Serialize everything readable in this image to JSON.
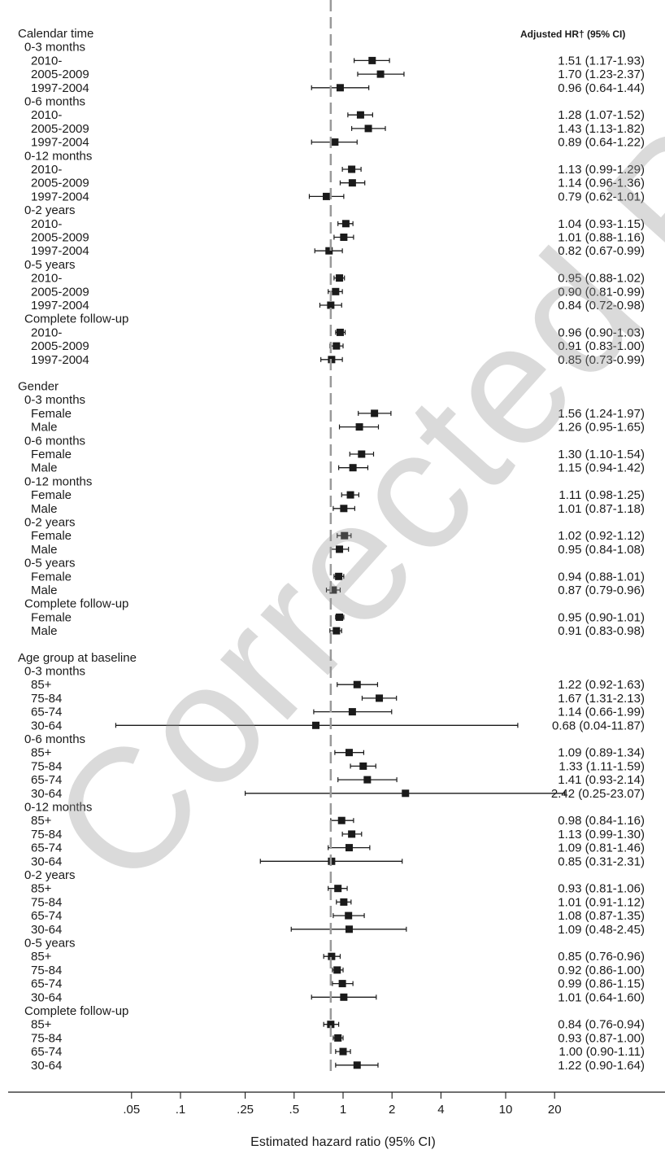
{
  "chart_data": {
    "type": "forest",
    "xscale": "log",
    "xlabel": "Estimated hazard ratio (95% CI)",
    "xticks": [
      {
        "v": 0.05,
        "label": ".05"
      },
      {
        "v": 0.1,
        "label": ".1"
      },
      {
        "v": 0.25,
        "label": ".25"
      },
      {
        "v": 0.5,
        "label": ".5"
      },
      {
        "v": 1,
        "label": "1"
      },
      {
        "v": 2,
        "label": "2"
      },
      {
        "v": 4,
        "label": "4"
      },
      {
        "v": 10,
        "label": "10"
      },
      {
        "v": 20,
        "label": "20"
      }
    ],
    "reference_line": 0.84,
    "right_header": "Adjusted HR† (95% CI)",
    "rows": [
      {
        "label": "Calendar time",
        "level": 0
      },
      {
        "label": "0-3 months",
        "level": 1
      },
      {
        "label": "2010-",
        "level": 2,
        "hr": 1.51,
        "lo": 1.17,
        "hi": 1.93,
        "text": "1.51 (1.17-1.93)"
      },
      {
        "label": "2005-2009",
        "level": 2,
        "hr": 1.7,
        "lo": 1.23,
        "hi": 2.37,
        "text": "1.70 (1.23-2.37)"
      },
      {
        "label": "1997-2004",
        "level": 2,
        "hr": 0.96,
        "lo": 0.64,
        "hi": 1.44,
        "text": "0.96 (0.64-1.44)"
      },
      {
        "label": "0-6 months",
        "level": 1
      },
      {
        "label": "2010-",
        "level": 2,
        "hr": 1.28,
        "lo": 1.07,
        "hi": 1.52,
        "text": "1.28 (1.07-1.52)"
      },
      {
        "label": "2005-2009",
        "level": 2,
        "hr": 1.43,
        "lo": 1.13,
        "hi": 1.82,
        "text": "1.43 (1.13-1.82)"
      },
      {
        "label": "1997-2004",
        "level": 2,
        "hr": 0.89,
        "lo": 0.64,
        "hi": 1.22,
        "text": "0.89 (0.64-1.22)"
      },
      {
        "label": "0-12 months",
        "level": 1
      },
      {
        "label": "2010-",
        "level": 2,
        "hr": 1.13,
        "lo": 0.99,
        "hi": 1.29,
        "text": "1.13 (0.99-1.29)"
      },
      {
        "label": "2005-2009",
        "level": 2,
        "hr": 1.14,
        "lo": 0.96,
        "hi": 1.36,
        "text": "1.14 (0.96-1.36)"
      },
      {
        "label": "1997-2004",
        "level": 2,
        "hr": 0.79,
        "lo": 0.62,
        "hi": 1.01,
        "text": "0.79 (0.62-1.01)"
      },
      {
        "label": "0-2 years",
        "level": 1
      },
      {
        "label": "2010-",
        "level": 2,
        "hr": 1.04,
        "lo": 0.93,
        "hi": 1.15,
        "text": "1.04 (0.93-1.15)"
      },
      {
        "label": "2005-2009",
        "level": 2,
        "hr": 1.01,
        "lo": 0.88,
        "hi": 1.16,
        "text": "1.01 (0.88-1.16)"
      },
      {
        "label": "1997-2004",
        "level": 2,
        "hr": 0.82,
        "lo": 0.67,
        "hi": 0.99,
        "text": "0.82 (0.67-0.99)"
      },
      {
        "label": "0-5 years",
        "level": 1
      },
      {
        "label": "2010-",
        "level": 2,
        "hr": 0.95,
        "lo": 0.88,
        "hi": 1.02,
        "text": "0.95 (0.88-1.02)"
      },
      {
        "label": "2005-2009",
        "level": 2,
        "hr": 0.9,
        "lo": 0.81,
        "hi": 0.99,
        "text": "0.90 (0.81-0.99)"
      },
      {
        "label": "1997-2004",
        "level": 2,
        "hr": 0.84,
        "lo": 0.72,
        "hi": 0.98,
        "text": "0.84 (0.72-0.98)"
      },
      {
        "label": "Complete follow-up",
        "level": 1
      },
      {
        "label": "2010-",
        "level": 2,
        "hr": 0.96,
        "lo": 0.9,
        "hi": 1.03,
        "text": "0.96 (0.90-1.03)"
      },
      {
        "label": "2005-2009",
        "level": 2,
        "hr": 0.91,
        "lo": 0.83,
        "hi": 1.0,
        "text": "0.91 (0.83-1.00)"
      },
      {
        "label": "1997-2004",
        "level": 2,
        "hr": 0.85,
        "lo": 0.73,
        "hi": 0.99,
        "text": "0.85 (0.73-0.99)"
      },
      {
        "label": "Gender",
        "level": 0
      },
      {
        "label": "0-3 months",
        "level": 1
      },
      {
        "label": "Female",
        "level": 2,
        "hr": 1.56,
        "lo": 1.24,
        "hi": 1.97,
        "text": "1.56 (1.24-1.97)"
      },
      {
        "label": "Male",
        "level": 2,
        "hr": 1.26,
        "lo": 0.95,
        "hi": 1.65,
        "text": "1.26 (0.95-1.65)"
      },
      {
        "label": "0-6 months",
        "level": 1
      },
      {
        "label": "Female",
        "level": 2,
        "hr": 1.3,
        "lo": 1.1,
        "hi": 1.54,
        "text": "1.30 (1.10-1.54)"
      },
      {
        "label": "Male",
        "level": 2,
        "hr": 1.15,
        "lo": 0.94,
        "hi": 1.42,
        "text": "1.15 (0.94-1.42)"
      },
      {
        "label": "0-12 months",
        "level": 1
      },
      {
        "label": "Female",
        "level": 2,
        "hr": 1.11,
        "lo": 0.98,
        "hi": 1.25,
        "text": "1.11 (0.98-1.25)"
      },
      {
        "label": "Male",
        "level": 2,
        "hr": 1.01,
        "lo": 0.87,
        "hi": 1.18,
        "text": "1.01 (0.87-1.18)"
      },
      {
        "label": "0-2 years",
        "level": 1
      },
      {
        "label": "Female",
        "level": 2,
        "hr": 1.02,
        "lo": 0.92,
        "hi": 1.12,
        "text": "1.02 (0.92-1.12)"
      },
      {
        "label": "Male",
        "level": 2,
        "hr": 0.95,
        "lo": 0.84,
        "hi": 1.08,
        "text": "0.95 (0.84-1.08)"
      },
      {
        "label": "0-5 years",
        "level": 1
      },
      {
        "label": "Female",
        "level": 2,
        "hr": 0.94,
        "lo": 0.88,
        "hi": 1.01,
        "text": "0.94 (0.88-1.01)"
      },
      {
        "label": "Male",
        "level": 2,
        "hr": 0.87,
        "lo": 0.79,
        "hi": 0.96,
        "text": "0.87 (0.79-0.96)"
      },
      {
        "label": "Complete follow-up",
        "level": 1
      },
      {
        "label": "Female",
        "level": 2,
        "hr": 0.95,
        "lo": 0.9,
        "hi": 1.01,
        "text": "0.95 (0.90-1.01)"
      },
      {
        "label": "Male",
        "level": 2,
        "hr": 0.91,
        "lo": 0.83,
        "hi": 0.98,
        "text": "0.91 (0.83-0.98)"
      },
      {
        "label": "Age group at baseline",
        "level": 0
      },
      {
        "label": "0-3 months",
        "level": 1
      },
      {
        "label": "85+",
        "level": 2,
        "hr": 1.22,
        "lo": 0.92,
        "hi": 1.63,
        "text": "1.22 (0.92-1.63)"
      },
      {
        "label": "75-84",
        "level": 2,
        "hr": 1.67,
        "lo": 1.31,
        "hi": 2.13,
        "text": "1.67 (1.31-2.13)"
      },
      {
        "label": "65-74",
        "level": 2,
        "hr": 1.14,
        "lo": 0.66,
        "hi": 1.99,
        "text": "1.14 (0.66-1.99)"
      },
      {
        "label": "30-64",
        "level": 2,
        "hr": 0.68,
        "lo": 0.04,
        "hi": 11.87,
        "text": "0.68 (0.04-11.87)"
      },
      {
        "label": "0-6 months",
        "level": 1
      },
      {
        "label": "85+",
        "level": 2,
        "hr": 1.09,
        "lo": 0.89,
        "hi": 1.34,
        "text": "1.09 (0.89-1.34)"
      },
      {
        "label": "75-84",
        "level": 2,
        "hr": 1.33,
        "lo": 1.11,
        "hi": 1.59,
        "text": "1.33 (1.11-1.59)"
      },
      {
        "label": "65-74",
        "level": 2,
        "hr": 1.41,
        "lo": 0.93,
        "hi": 2.14,
        "text": "1.41 (0.93-2.14)"
      },
      {
        "label": "30-64",
        "level": 2,
        "hr": 2.42,
        "lo": 0.25,
        "hi": 23.07,
        "text": "2.42 (0.25-23.07)"
      },
      {
        "label": "0-12 months",
        "level": 1
      },
      {
        "label": "85+",
        "level": 2,
        "hr": 0.98,
        "lo": 0.84,
        "hi": 1.16,
        "text": "0.98 (0.84-1.16)"
      },
      {
        "label": "75-84",
        "level": 2,
        "hr": 1.13,
        "lo": 0.99,
        "hi": 1.3,
        "text": "1.13 (0.99-1.30)"
      },
      {
        "label": "65-74",
        "level": 2,
        "hr": 1.09,
        "lo": 0.81,
        "hi": 1.46,
        "text": "1.09 (0.81-1.46)"
      },
      {
        "label": "30-64",
        "level": 2,
        "hr": 0.85,
        "lo": 0.31,
        "hi": 2.31,
        "text": "0.85 (0.31-2.31)"
      },
      {
        "label": "0-2 years",
        "level": 1
      },
      {
        "label": "85+",
        "level": 2,
        "hr": 0.93,
        "lo": 0.81,
        "hi": 1.06,
        "text": "0.93 (0.81-1.06)"
      },
      {
        "label": "75-84",
        "level": 2,
        "hr": 1.01,
        "lo": 0.91,
        "hi": 1.12,
        "text": "1.01 (0.91-1.12)"
      },
      {
        "label": "65-74",
        "level": 2,
        "hr": 1.08,
        "lo": 0.87,
        "hi": 1.35,
        "text": "1.08 (0.87-1.35)"
      },
      {
        "label": "30-64",
        "level": 2,
        "hr": 1.09,
        "lo": 0.48,
        "hi": 2.45,
        "text": "1.09 (0.48-2.45)"
      },
      {
        "label": "0-5 years",
        "level": 1
      },
      {
        "label": "85+",
        "level": 2,
        "hr": 0.85,
        "lo": 0.76,
        "hi": 0.96,
        "text": "0.85 (0.76-0.96)"
      },
      {
        "label": "75-84",
        "level": 2,
        "hr": 0.92,
        "lo": 0.86,
        "hi": 1.0,
        "text": "0.92 (0.86-1.00)"
      },
      {
        "label": "65-74",
        "level": 2,
        "hr": 0.99,
        "lo": 0.86,
        "hi": 1.15,
        "text": "0.99 (0.86-1.15)"
      },
      {
        "label": "30-64",
        "level": 2,
        "hr": 1.01,
        "lo": 0.64,
        "hi": 1.6,
        "text": "1.01 (0.64-1.60)"
      },
      {
        "label": "Complete follow-up",
        "level": 1
      },
      {
        "label": "85+",
        "level": 2,
        "hr": 0.84,
        "lo": 0.76,
        "hi": 0.94,
        "text": "0.84 (0.76-0.94)"
      },
      {
        "label": "75-84",
        "level": 2,
        "hr": 0.93,
        "lo": 0.87,
        "hi": 1.0,
        "text": "0.93 (0.87-1.00)"
      },
      {
        "label": "65-74",
        "level": 2,
        "hr": 1.0,
        "lo": 0.9,
        "hi": 1.11,
        "text": "1.00 (0.90-1.11)"
      },
      {
        "label": "30-64",
        "level": 2,
        "hr": 1.22,
        "lo": 0.9,
        "hi": 1.64,
        "text": "1.22 (0.90-1.64)"
      }
    ]
  },
  "watermark": "Corrected Proof",
  "colors": {
    "ink": "#1a1a1a",
    "refline": "#9a9a9a",
    "watermark": "#969696"
  }
}
